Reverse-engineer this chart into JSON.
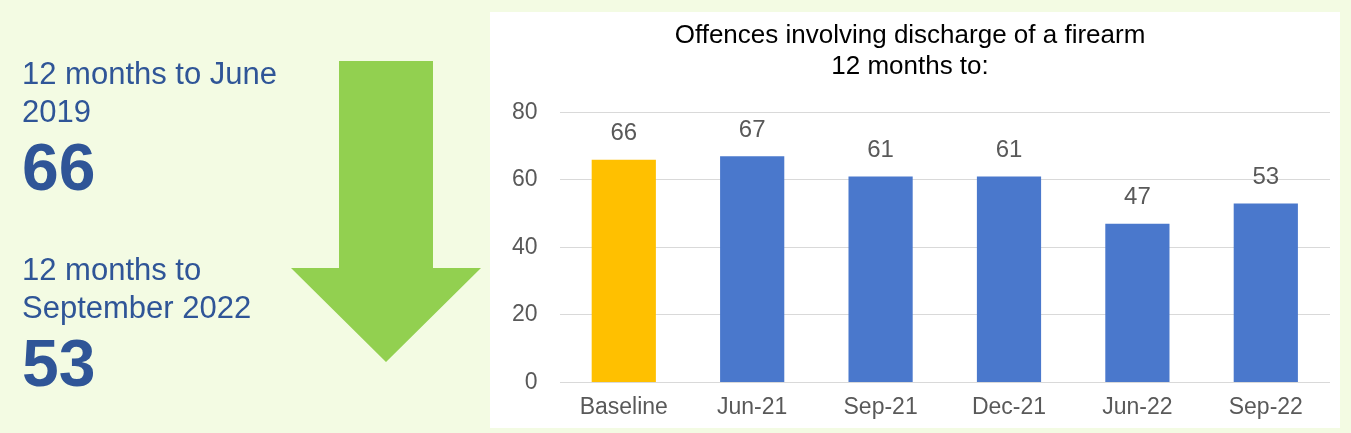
{
  "chart_data": [
    {
      "type": "other",
      "annotations": [
        "12 months to June 2019",
        "66",
        "12 months to September 2022",
        "53"
      ]
    },
    {
      "type": "bar",
      "title": "Offences involving discharge of a firearm\n12 months to:",
      "categories": [
        "Baseline",
        "Jun-21",
        "Sep-21",
        "Dec-21",
        "Jun-22",
        "Sep-22"
      ],
      "values": [
        66,
        67,
        61,
        61,
        47,
        53
      ],
      "colors": [
        "#ffc000",
        "#4a78cc",
        "#4a78cc",
        "#4a78cc",
        "#4a78cc",
        "#4a78cc"
      ],
      "ylim": [
        0,
        80
      ],
      "yticks": [
        0,
        20,
        40,
        60,
        80
      ],
      "grid": "y",
      "data_labels": true,
      "legend": false
    }
  ]
}
